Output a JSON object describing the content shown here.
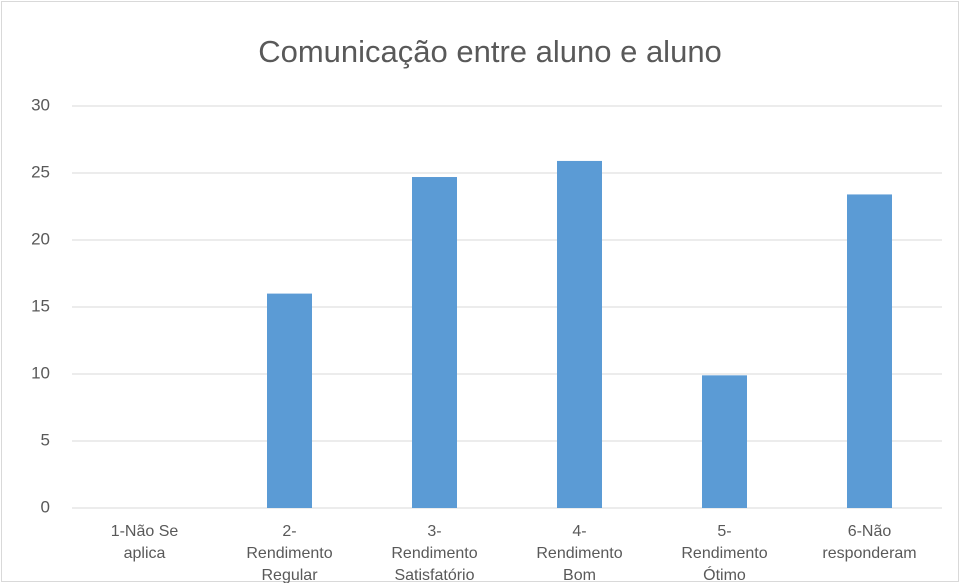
{
  "chart_data": {
    "type": "bar",
    "title": "Comunicação entre aluno e aluno",
    "categories": [
      "1-Não Se aplica",
      "2- Rendimento Regular",
      "3-Rendimento Satisfatório",
      "4-Rendimento Bom",
      "5-Rendimento Ótimo",
      "6-Não responderam"
    ],
    "values": [
      0,
      16,
      24.7,
      25.9,
      9.9,
      23.4
    ],
    "color": "#5b9bd5",
    "ylim": [
      0,
      30
    ],
    "yticks": [
      0,
      5,
      10,
      15,
      20,
      25,
      30
    ],
    "grid": true
  }
}
